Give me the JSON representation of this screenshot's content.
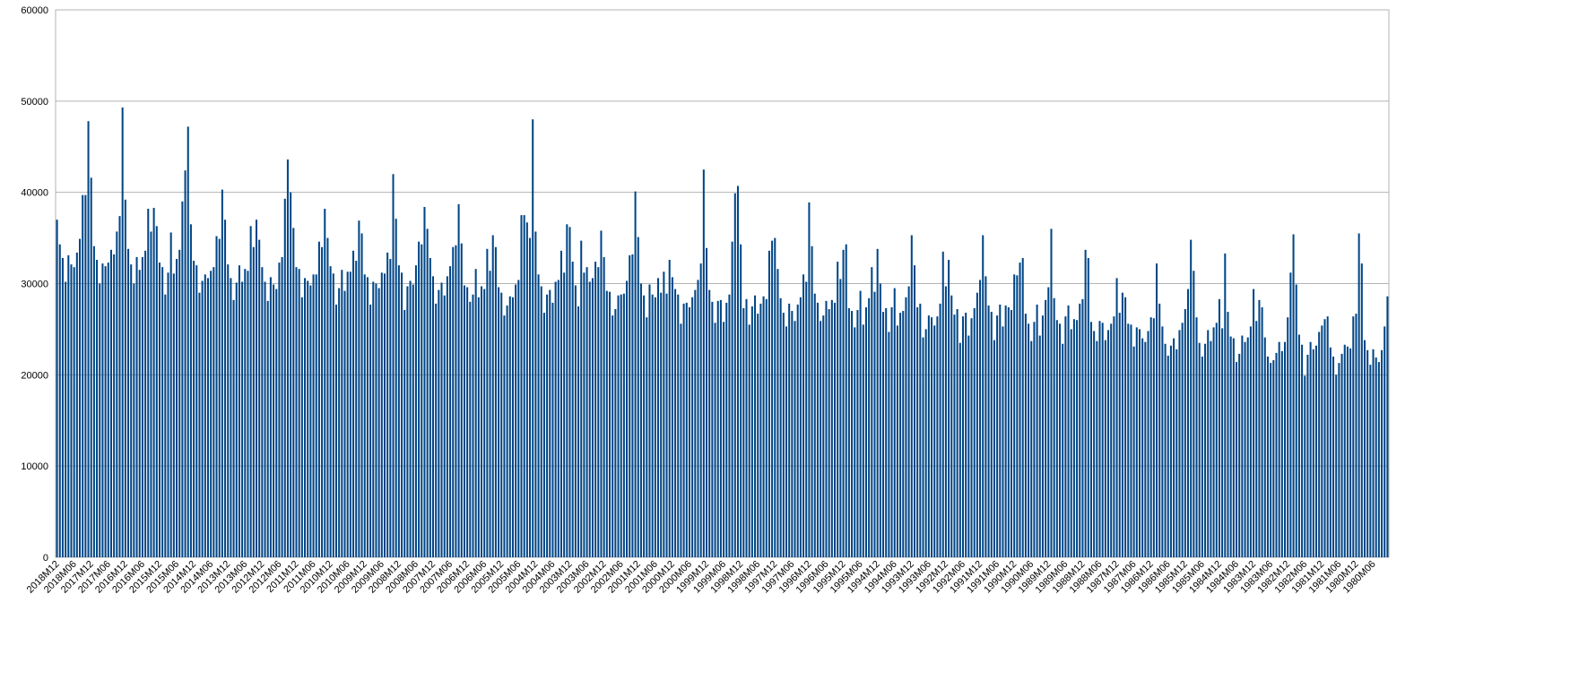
{
  "chart_data": {
    "type": "bar",
    "color": "#004586",
    "grid": true,
    "ylim": [
      0,
      60000
    ],
    "yticks": [
      0,
      10000,
      20000,
      30000,
      40000,
      50000,
      60000
    ],
    "categories": [
      "2018M12",
      null,
      null,
      null,
      null,
      null,
      "2018M06",
      null,
      null,
      null,
      null,
      null,
      "2017M12",
      null,
      null,
      null,
      null,
      null,
      "2017M06",
      null,
      null,
      null,
      null,
      null,
      "2016M12",
      null,
      null,
      null,
      null,
      null,
      "2016M06",
      null,
      null,
      null,
      null,
      null,
      "2015M12",
      null,
      null,
      null,
      null,
      null,
      "2015M06",
      null,
      null,
      null,
      null,
      null,
      "2014M12",
      null,
      null,
      null,
      null,
      null,
      "2014M06",
      null,
      null,
      null,
      null,
      null,
      "2013M12",
      null,
      null,
      null,
      null,
      null,
      "2013M06",
      null,
      null,
      null,
      null,
      null,
      "2012M12",
      null,
      null,
      null,
      null,
      null,
      "2012M06",
      null,
      null,
      null,
      null,
      null,
      "2011M12",
      null,
      null,
      null,
      null,
      null,
      "2011M06",
      null,
      null,
      null,
      null,
      null,
      "2010M12",
      null,
      null,
      null,
      null,
      null,
      "2010M06",
      null,
      null,
      null,
      null,
      null,
      "2009M12",
      null,
      null,
      null,
      null,
      null,
      "2009M06",
      null,
      null,
      null,
      null,
      null,
      "2008M12",
      null,
      null,
      null,
      null,
      null,
      "2008M06",
      null,
      null,
      null,
      null,
      null,
      "2007M12",
      null,
      null,
      null,
      null,
      null,
      "2007M06",
      null,
      null,
      null,
      null,
      null,
      "2006M12",
      null,
      null,
      null,
      null,
      null,
      "2006M06",
      null,
      null,
      null,
      null,
      null,
      "2005M12",
      null,
      null,
      null,
      null,
      null,
      "2005M06",
      null,
      null,
      null,
      null,
      null,
      "2004M12",
      null,
      null,
      null,
      null,
      null,
      "2004M06",
      null,
      null,
      null,
      null,
      null,
      "2003M12",
      null,
      null,
      null,
      null,
      null,
      "2003M06",
      null,
      null,
      null,
      null,
      null,
      "2002M12",
      null,
      null,
      null,
      null,
      null,
      "2002M06",
      null,
      null,
      null,
      null,
      null,
      "2001M12",
      null,
      null,
      null,
      null,
      null,
      "2001M06",
      null,
      null,
      null,
      null,
      null,
      "2000M12",
      null,
      null,
      null,
      null,
      null,
      "2000M06",
      null,
      null,
      null,
      null,
      null,
      "1999M12",
      null,
      null,
      null,
      null,
      null,
      "1999M06",
      null,
      null,
      null,
      null,
      null,
      "1998M12",
      null,
      null,
      null,
      null,
      null,
      "1998M06",
      null,
      null,
      null,
      null,
      null,
      "1997M12",
      null,
      null,
      null,
      null,
      null,
      "1997M06",
      null,
      null,
      null,
      null,
      null,
      "1996M12",
      null,
      null,
      null,
      null,
      null,
      "1996M06",
      null,
      null,
      null,
      null,
      null,
      "1995M12",
      null,
      null,
      null,
      null,
      null,
      "1995M06",
      null,
      null,
      null,
      null,
      null,
      "1994M12",
      null,
      null,
      null,
      null,
      null,
      "1994M06",
      null,
      null,
      null,
      null,
      null,
      "1993M12",
      null,
      null,
      null,
      null,
      null,
      "1993M06",
      null,
      null,
      null,
      null,
      null,
      "1992M12",
      null,
      null,
      null,
      null,
      null,
      "1992M06",
      null,
      null,
      null,
      null,
      null,
      "1991M12",
      null,
      null,
      null,
      null,
      null,
      "1991M06",
      null,
      null,
      null,
      null,
      null,
      "1990M12",
      null,
      null,
      null,
      null,
      null,
      "1990M06",
      null,
      null,
      null,
      null,
      null,
      "1989M12",
      null,
      null,
      null,
      null,
      null,
      "1989M06",
      null,
      null,
      null,
      null,
      null,
      "1988M12",
      null,
      null,
      null,
      null,
      null,
      "1988M06",
      null,
      null,
      null,
      null,
      null,
      "1987M12",
      null,
      null,
      null,
      null,
      null,
      "1987M06",
      null,
      null,
      null,
      null,
      null,
      "1986M12",
      null,
      null,
      null,
      null,
      null,
      "1986M06",
      null,
      null,
      null,
      null,
      null,
      "1985M12",
      null,
      null,
      null,
      null,
      null,
      "1985M06",
      null,
      null,
      null,
      null,
      null,
      "1984M12",
      null,
      null,
      null,
      null,
      null,
      "1984M06",
      null,
      null,
      null,
      null,
      null,
      "1983M12",
      null,
      null,
      null,
      null,
      null,
      "1983M06",
      null,
      null,
      null,
      null,
      null,
      "1982M12",
      null,
      null,
      null,
      null,
      null,
      "1982M06",
      null,
      null,
      null,
      null,
      null,
      "1981M12",
      null,
      null,
      null,
      null,
      null,
      "1981M06",
      null,
      null,
      null,
      null,
      null,
      "1980M12",
      null,
      null,
      null,
      null,
      null,
      "1980M06",
      null,
      null,
      null,
      null,
      null
    ],
    "values": [
      37000,
      34300,
      32800,
      30200,
      33100,
      32100,
      31800,
      33400,
      34900,
      39700,
      39700,
      47800,
      41600,
      34100,
      32600,
      30000,
      32200,
      31900,
      32300,
      33700,
      33200,
      35700,
      37400,
      49300,
      39200,
      33800,
      32100,
      30000,
      32900,
      31500,
      32900,
      33600,
      38200,
      35700,
      38300,
      36300,
      32300,
      31800,
      28800,
      31200,
      35600,
      31100,
      32700,
      33700,
      39000,
      42400,
      47200,
      36500,
      32500,
      32000,
      29000,
      30300,
      31000,
      30600,
      31400,
      31800,
      35200,
      34900,
      40300,
      37000,
      32100,
      30600,
      28200,
      30100,
      32000,
      30200,
      31600,
      31400,
      36300,
      34000,
      37000,
      34800,
      31800,
      30200,
      28100,
      30700,
      29900,
      29400,
      32300,
      32900,
      39300,
      43600,
      40000,
      36100,
      31800,
      31600,
      28500,
      30600,
      30300,
      29800,
      31000,
      31000,
      34600,
      34000,
      38200,
      35000,
      31900,
      31100,
      27700,
      29500,
      31500,
      29200,
      31300,
      31300,
      33600,
      32500,
      36900,
      35500,
      31000,
      30700,
      27700,
      30200,
      30000,
      29500,
      31200,
      31100,
      33400,
      32700,
      42000,
      37100,
      32000,
      31200,
      27100,
      29700,
      30300,
      29900,
      32000,
      34600,
      34300,
      38400,
      36000,
      32800,
      30800,
      27800,
      29300,
      30100,
      28700,
      30800,
      31900,
      34000,
      34200,
      38700,
      34400,
      29800,
      29600,
      28000,
      28800,
      31600,
      28500,
      29700,
      29400,
      33800,
      31400,
      35300,
      34000,
      29600,
      29000,
      26500,
      27600,
      28600,
      28500,
      29900,
      30400,
      37500,
      37500,
      36700,
      35000,
      48000,
      35700,
      31000,
      29700,
      26800,
      28800,
      29300,
      27900,
      30200,
      30400,
      33600,
      31200,
      36500,
      36200,
      32400,
      29800,
      27500,
      34700,
      31200,
      31800,
      30200,
      30600,
      32400,
      31800,
      35800,
      32900,
      29200,
      29100,
      26500,
      27200,
      28700,
      28800,
      28900,
      30300,
      33100,
      33200,
      40100,
      35100,
      30000,
      28700,
      26300,
      29900,
      28800,
      28500,
      30600,
      29000,
      31300,
      28900,
      32600,
      30700,
      29400,
      28800,
      25600,
      27800,
      27900,
      27400,
      28500,
      29300,
      30400,
      32200,
      42500,
      33900,
      29300,
      28000,
      25700,
      28100,
      28200,
      25800,
      27900,
      28800,
      34600,
      39900,
      40700,
      34300,
      27300,
      28300,
      25500,
      27500,
      28700,
      26700,
      27800,
      28600,
      28300,
      33600,
      34700,
      35000,
      31600,
      28400,
      26800,
      25300,
      27800,
      27000,
      25900,
      27700,
      28500,
      31000,
      30200,
      38900,
      34100,
      28900,
      27900,
      25900,
      26500,
      28100,
      27200,
      28200,
      27900,
      32400,
      30500,
      33700,
      34300,
      27300,
      27000,
      25200,
      27100,
      29200,
      25500,
      27400,
      28400,
      31800,
      29100,
      33800,
      30000,
      26900,
      27300,
      24700,
      27400,
      29500,
      25400,
      26800,
      27000,
      28500,
      29700,
      35300,
      32000,
      27400,
      27800,
      24100,
      25000,
      26500,
      26300,
      25400,
      26400,
      27800,
      33500,
      29700,
      32600,
      28700,
      26600,
      27200,
      23500,
      26400,
      26800,
      24300,
      26200,
      27300,
      29000,
      30400,
      35300,
      30800,
      27600,
      26900,
      23800,
      26500,
      27700,
      25300,
      27600,
      27400,
      27100,
      31000,
      30900,
      32300,
      32800,
      26700,
      25600,
      23700,
      25800,
      27700,
      24300,
      26500,
      28200,
      29600,
      36000,
      28400,
      26000,
      25600,
      23400,
      26400,
      27600,
      25000,
      26100,
      26000,
      27800,
      28300,
      33700,
      32800,
      25800,
      24800,
      23700,
      25900,
      25700,
      23800,
      24900,
      25600,
      26400,
      30600,
      26800,
      29000,
      28500,
      25600,
      25500,
      23100,
      25200,
      25000,
      24000,
      23600,
      24800,
      26300,
      26200,
      32200,
      27800,
      25300,
      23400,
      22100,
      23200,
      24000,
      22800,
      24900,
      25700,
      27200,
      29400,
      34800,
      31400,
      26300,
      23500,
      22000,
      23400,
      24900,
      23700,
      25200,
      25700,
      28300,
      25100,
      33300,
      26900,
      24200,
      24000,
      21400,
      22300,
      24300,
      23600,
      24100,
      25300,
      29400,
      25900,
      28200,
      27400,
      24100,
      22000,
      21300,
      21600,
      22400,
      23600,
      22600,
      23600,
      26300,
      31200,
      35400,
      29900,
      24400,
      23300,
      19900,
      22200,
      23600,
      22800,
      23200,
      24700,
      25400,
      26100,
      26400,
      23000,
      22000,
      20000,
      21300,
      22300,
      23300,
      23100,
      22900,
      26400,
      26700,
      35500,
      32200,
      23800,
      22700,
      21100,
      22800,
      21900,
      21400,
      22700,
      25300,
      28600
    ]
  }
}
